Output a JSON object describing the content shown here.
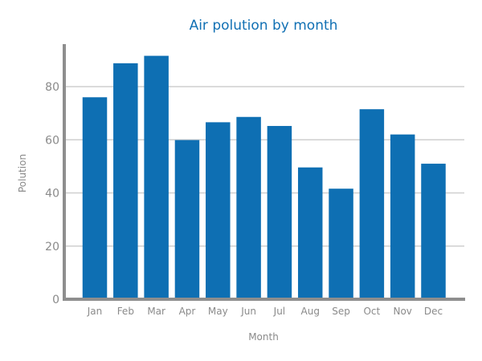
{
  "chart_data": {
    "type": "bar",
    "title": "Air polution by month",
    "xlabel": "Month",
    "ylabel": "Polution",
    "categories": [
      "Jan",
      "Feb",
      "Mar",
      "Apr",
      "May",
      "Jun",
      "Jul",
      "Aug",
      "Sep",
      "Oct",
      "Nov",
      "Dec"
    ],
    "values": [
      76.0,
      88.8,
      91.6,
      59.9,
      66.6,
      68.6,
      65.2,
      49.6,
      41.6,
      71.5,
      62.0,
      51.0
    ],
    "ylim": [
      0,
      96
    ],
    "yticks": [
      0,
      20,
      40,
      60,
      80
    ],
    "grid": true,
    "bar_color": "#0e6fb3",
    "title_color": "#1170b4",
    "axis_color": "#8e8e8e",
    "grid_color": "#cfcfcf",
    "text_color": "#8a8a8a"
  }
}
